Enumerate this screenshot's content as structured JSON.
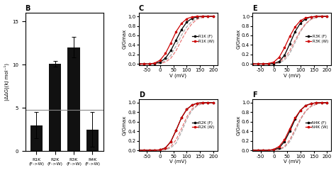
{
  "chart_data": [
    {
      "type": "bar",
      "title": "B",
      "categories": [
        "R1K\n(F->W)",
        "R2K\n(F->W)",
        "R3K\n(F->W)",
        "R4K\n(F->W)"
      ],
      "values": [
        3.0,
        10.1,
        12.0,
        2.5
      ],
      "errors": [
        1.5,
        0.3,
        1.2,
        2.0
      ],
      "hline": 4.8,
      "color": "#111111",
      "ylabel": "|ΔΔG|(kJ mol⁻¹)",
      "ylim": [
        0,
        16
      ],
      "yticks": [
        0,
        5,
        10,
        15
      ]
    },
    {
      "type": "line",
      "title": "C",
      "xlabel": "V (mV)",
      "ylabel": "G/Gmax",
      "x": [
        -80,
        -60,
        -40,
        -20,
        0,
        20,
        40,
        60,
        80,
        100,
        120,
        140,
        160,
        180,
        200
      ],
      "series": [
        {
          "color": "#aaaaaa",
          "line_style": "dashed",
          "values": [
            0.0,
            0.0,
            0.0,
            0.0,
            0.02,
            0.07,
            0.18,
            0.38,
            0.6,
            0.78,
            0.9,
            0.96,
            0.99,
            1.0,
            1.0
          ]
        },
        {
          "color": "#e87878",
          "line_style": "dashed",
          "values": [
            0.0,
            0.0,
            0.0,
            0.0,
            0.01,
            0.04,
            0.12,
            0.28,
            0.5,
            0.7,
            0.85,
            0.94,
            0.98,
            1.0,
            1.0
          ]
        },
        {
          "name": "R1K (F)",
          "color": "#000000",
          "line_style": "solid",
          "marker": "o",
          "values": [
            0.0,
            0.0,
            0.0,
            0.01,
            0.04,
            0.12,
            0.28,
            0.5,
            0.72,
            0.88,
            0.96,
            0.99,
            1.0,
            1.0,
            1.0
          ]
        },
        {
          "name": "R1K (W)",
          "color": "#cc0000",
          "line_style": "solid",
          "marker": "o",
          "values": [
            0.0,
            0.0,
            0.0,
            0.02,
            0.08,
            0.22,
            0.44,
            0.68,
            0.85,
            0.95,
            0.99,
            1.0,
            1.0,
            1.0,
            1.0
          ]
        }
      ],
      "xlim": [
        -80,
        215
      ],
      "xticks": [
        -50,
        0,
        50,
        100,
        150,
        200
      ],
      "ylim": [
        -0.02,
        1.08
      ],
      "yticks": [
        0.0,
        0.2,
        0.4,
        0.6,
        0.8,
        1.0
      ],
      "legend": "center right"
    },
    {
      "type": "line",
      "title": "D",
      "xlabel": "V (mV)",
      "ylabel": "G/Gmax",
      "x": [
        -80,
        -60,
        -40,
        -20,
        0,
        20,
        40,
        60,
        80,
        100,
        120,
        140,
        160,
        180,
        200
      ],
      "series": [
        {
          "color": "#aaaaaa",
          "line_style": "dashed",
          "values": [
            0.0,
            0.0,
            0.0,
            0.0,
            0.0,
            0.01,
            0.05,
            0.15,
            0.38,
            0.65,
            0.84,
            0.94,
            0.98,
            1.0,
            1.0
          ]
        },
        {
          "color": "#e87878",
          "line_style": "dashed",
          "values": [
            0.0,
            0.0,
            0.0,
            0.0,
            0.0,
            0.02,
            0.08,
            0.22,
            0.45,
            0.7,
            0.87,
            0.95,
            0.99,
            1.0,
            1.0
          ]
        },
        {
          "name": "R2K (F)",
          "color": "#000000",
          "line_style": "solid",
          "marker": "o",
          "values": [
            0.0,
            0.0,
            0.0,
            0.0,
            0.01,
            0.05,
            0.18,
            0.42,
            0.68,
            0.86,
            0.95,
            0.99,
            1.0,
            1.0,
            1.0
          ]
        },
        {
          "name": "R2K (W)",
          "color": "#cc0000",
          "line_style": "solid",
          "marker": "o",
          "values": [
            0.0,
            0.0,
            0.0,
            0.0,
            0.01,
            0.05,
            0.18,
            0.42,
            0.68,
            0.86,
            0.95,
            0.99,
            1.0,
            1.0,
            1.0
          ]
        }
      ],
      "xlim": [
        -80,
        215
      ],
      "xticks": [
        -50,
        0,
        50,
        100,
        150,
        200
      ],
      "ylim": [
        -0.02,
        1.08
      ],
      "yticks": [
        0.0,
        0.2,
        0.4,
        0.6,
        0.8,
        1.0
      ],
      "legend": "center right"
    },
    {
      "type": "line",
      "title": "E",
      "xlabel": "V (mV)",
      "ylabel": "G/Gmax",
      "x": [
        -80,
        -60,
        -40,
        -20,
        0,
        20,
        40,
        60,
        80,
        100,
        120,
        140,
        160,
        180,
        200
      ],
      "series": [
        {
          "color": "#aaaaaa",
          "line_style": "dashed",
          "values": [
            0.0,
            0.0,
            0.0,
            0.0,
            0.0,
            0.02,
            0.08,
            0.22,
            0.45,
            0.68,
            0.84,
            0.94,
            0.98,
            1.0,
            1.0
          ]
        },
        {
          "color": "#e87878",
          "line_style": "dashed",
          "values": [
            0.0,
            0.0,
            0.0,
            0.0,
            0.01,
            0.04,
            0.12,
            0.28,
            0.5,
            0.7,
            0.85,
            0.94,
            0.98,
            1.0,
            1.0
          ]
        },
        {
          "name": "R3K (F)",
          "color": "#000000",
          "line_style": "solid",
          "marker": "o",
          "values": [
            0.0,
            0.0,
            0.0,
            0.0,
            0.01,
            0.05,
            0.18,
            0.42,
            0.68,
            0.86,
            0.95,
            0.99,
            1.0,
            1.0,
            1.0
          ]
        },
        {
          "name": "R3K (W)",
          "color": "#cc0000",
          "line_style": "solid",
          "marker": "o",
          "values": [
            0.0,
            0.0,
            0.0,
            0.01,
            0.04,
            0.14,
            0.34,
            0.58,
            0.78,
            0.91,
            0.97,
            0.99,
            1.0,
            1.0,
            1.0
          ]
        }
      ],
      "xlim": [
        -80,
        215
      ],
      "xticks": [
        -50,
        0,
        50,
        100,
        150,
        200
      ],
      "ylim": [
        -0.02,
        1.08
      ],
      "yticks": [
        0.0,
        0.2,
        0.4,
        0.6,
        0.8,
        1.0
      ],
      "legend": "center right"
    },
    {
      "type": "line",
      "title": "F",
      "xlabel": "V (mV)",
      "ylabel": "G/Gmax",
      "x": [
        -80,
        -60,
        -40,
        -20,
        0,
        20,
        40,
        60,
        80,
        100,
        120,
        140,
        160,
        180,
        200
      ],
      "series": [
        {
          "color": "#aaaaaa",
          "line_style": "dashed",
          "values": [
            0.0,
            0.0,
            0.0,
            0.0,
            0.0,
            0.01,
            0.06,
            0.18,
            0.4,
            0.64,
            0.82,
            0.92,
            0.97,
            1.0,
            1.0
          ]
        },
        {
          "color": "#e87878",
          "line_style": "dashed",
          "values": [
            0.0,
            0.0,
            0.0,
            0.0,
            0.0,
            0.02,
            0.08,
            0.22,
            0.44,
            0.66,
            0.83,
            0.93,
            0.97,
            1.0,
            1.0
          ]
        },
        {
          "name": "N4K (F)",
          "color": "#000000",
          "line_style": "solid",
          "marker": "o",
          "values": [
            0.0,
            0.0,
            0.0,
            0.0,
            0.01,
            0.05,
            0.18,
            0.4,
            0.65,
            0.84,
            0.94,
            0.98,
            1.0,
            1.0,
            1.0
          ]
        },
        {
          "name": "N4K (W)",
          "color": "#cc0000",
          "line_style": "solid",
          "marker": "o",
          "values": [
            0.0,
            0.0,
            0.0,
            0.0,
            0.02,
            0.08,
            0.22,
            0.45,
            0.68,
            0.84,
            0.94,
            0.98,
            1.0,
            1.0,
            1.0
          ]
        }
      ],
      "xlim": [
        -80,
        215
      ],
      "xticks": [
        -50,
        0,
        50,
        100,
        150,
        200
      ],
      "ylim": [
        -0.02,
        1.08
      ],
      "yticks": [
        0.0,
        0.2,
        0.4,
        0.6,
        0.8,
        1.0
      ],
      "legend": "center right"
    }
  ]
}
